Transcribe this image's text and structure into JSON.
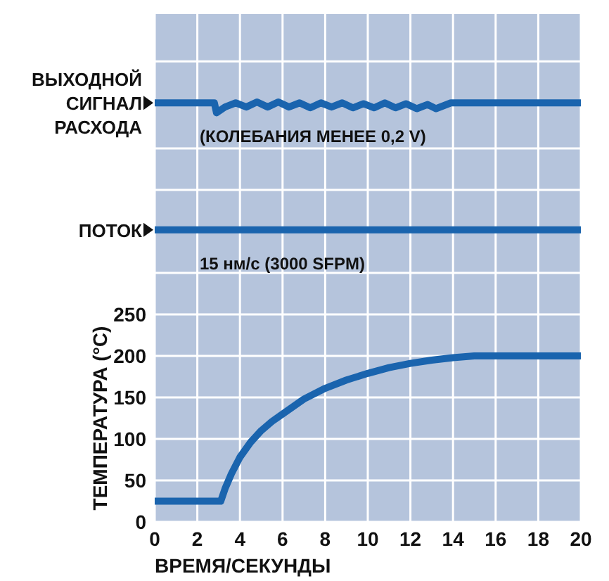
{
  "chart_data": {
    "type": "line",
    "xlabel": "ВРЕМЯ/СЕКУНДЫ",
    "ylabel": "ТЕМПЕРАТУРА (°C)",
    "xlim": [
      0,
      20
    ],
    "xticks": [
      0,
      2,
      4,
      6,
      8,
      10,
      12,
      14,
      16,
      18,
      20
    ],
    "ylim": [
      0,
      612
    ],
    "yticks": [
      0,
      50,
      100,
      150,
      200,
      250,
      {
        "value": 300,
        "label": null
      },
      {
        "value": 400,
        "label": null
      },
      {
        "value": 450,
        "label": null
      },
      {
        "value": 555,
        "label": null
      }
    ],
    "grid": true,
    "marker": "none",
    "line_style": "solid",
    "series": [
      {
        "name": "ВЫХОДНОЙ СИГНАЛ РАСХОДА",
        "color": "#1a64ae",
        "x": [
          0,
          2.8,
          2.9,
          3.3,
          3.8,
          4.3,
          4.8,
          5.3,
          5.8,
          6.3,
          6.8,
          7.3,
          7.8,
          8.3,
          8.8,
          9.3,
          9.8,
          10.3,
          10.8,
          11.3,
          11.8,
          12.3,
          12.8,
          13.2,
          13.9,
          20
        ],
        "values": [
          505,
          505,
          493,
          500,
          505,
          500,
          506,
          500,
          506,
          500,
          505,
          499,
          505,
          500,
          505,
          499,
          504,
          499,
          505,
          499,
          504,
          498,
          503,
          498,
          505,
          505
        ]
      },
      {
        "name": "ПОТОК",
        "color": "#1a64ae",
        "x": [
          0,
          20
        ],
        "values": [
          352,
          352
        ]
      },
      {
        "name": null,
        "color": "#1a64ae",
        "x": [
          0,
          3.1,
          3.3,
          3.6,
          4,
          4.5,
          5,
          5.5,
          6,
          7,
          8,
          9,
          10,
          11,
          12,
          13,
          14,
          15,
          20
        ],
        "values": [
          25,
          25,
          40,
          58,
          78,
          96,
          110,
          121,
          130,
          148,
          161,
          171,
          179,
          186,
          191,
          195,
          198,
          200,
          200
        ]
      }
    ],
    "annotations": [
      "(КОЛЕБАНИЯ МЕНЕЕ 0,2 V)",
      "15 нм/с (3000 SFPM)"
    ]
  }
}
